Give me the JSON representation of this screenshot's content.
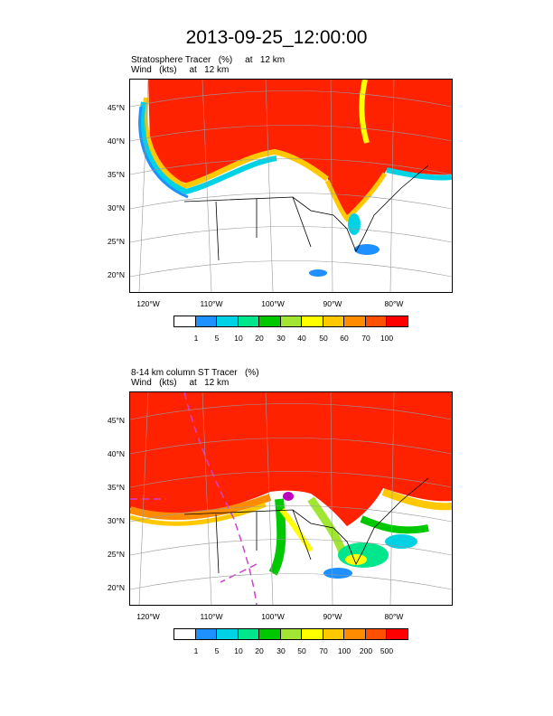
{
  "title": "2013-09-25_12:00:00",
  "panels": [
    {
      "caption_line1": "Stratosphere Tracer   (%)     at   12 km",
      "caption_line2": "Wind   (kts)     at   12 km",
      "lat_labels": [
        "45°N",
        "40°N",
        "35°N",
        "30°N",
        "25°N",
        "20°N"
      ],
      "lon_labels": [
        "120°W",
        "110°W",
        "100°W",
        "90°W",
        "80°W"
      ],
      "colorbar_colors": [
        "#ffffff",
        "#1e90ff",
        "#00d2e6",
        "#00e68c",
        "#00c800",
        "#a0e632",
        "#ffff00",
        "#ffc800",
        "#ff8c00",
        "#ff5000",
        "#ff0000"
      ],
      "colorbar_labels": [
        "1",
        "5",
        "10",
        "20",
        "30",
        "40",
        "50",
        "60",
        "70",
        "100"
      ]
    },
    {
      "caption_line1": "8-14 km column ST Tracer   (%)",
      "caption_line2": "Wind   (kts)     at   12 km",
      "lat_labels": [
        "45°N",
        "40°N",
        "35°N",
        "30°N",
        "25°N",
        "20°N"
      ],
      "lon_labels": [
        "120°W",
        "110°W",
        "100°W",
        "90°W",
        "80°W"
      ],
      "colorbar_colors": [
        "#ffffff",
        "#1e90ff",
        "#00d2e6",
        "#00e68c",
        "#00c800",
        "#a0e632",
        "#ffff00",
        "#ffc800",
        "#ff8c00",
        "#ff5000",
        "#ff0000"
      ],
      "colorbar_labels": [
        "1",
        "5",
        "10",
        "20",
        "30",
        "50",
        "70",
        "100",
        "200",
        "500"
      ]
    }
  ]
}
